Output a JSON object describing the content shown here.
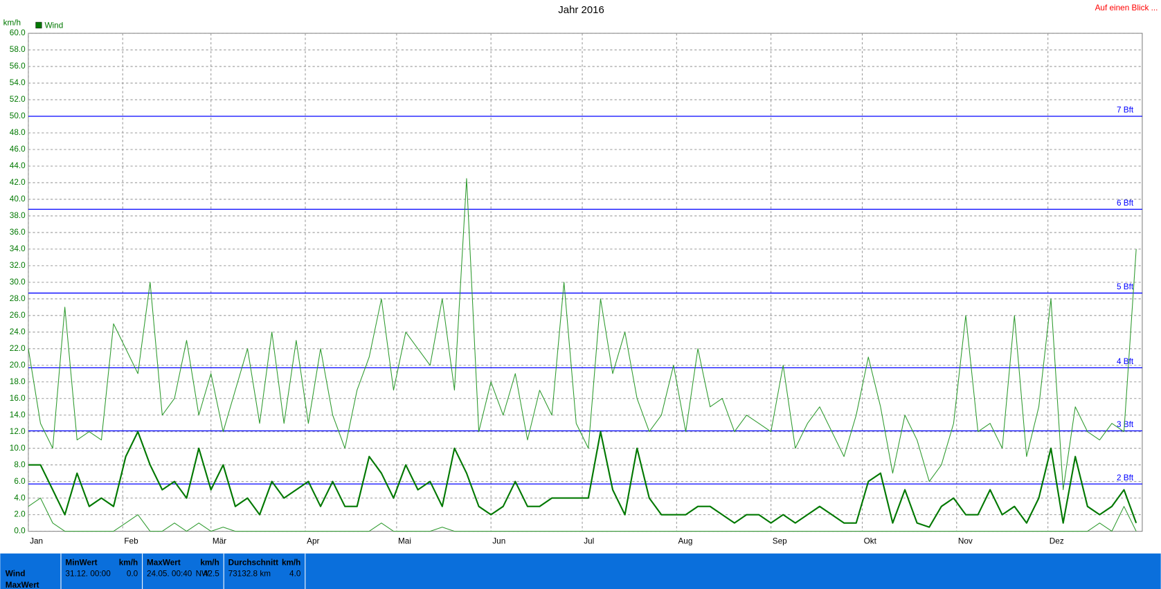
{
  "chart_data": {
    "type": "line",
    "title": "Jahr 2016",
    "y_label": "km/h",
    "link": "Auf einen Blick ...",
    "x": [
      0,
      4,
      8,
      12,
      16,
      20,
      24,
      28,
      32,
      36,
      40,
      44,
      48,
      52,
      56,
      60,
      64,
      68,
      72,
      76,
      80,
      84,
      88,
      92,
      96,
      100,
      104,
      108,
      112,
      116,
      120,
      124,
      128,
      132,
      136,
      140,
      144,
      148,
      152,
      156,
      160,
      164,
      168,
      172,
      176,
      180,
      184,
      188,
      192,
      196,
      200,
      204,
      208,
      212,
      216,
      220,
      224,
      228,
      232,
      236,
      240,
      244,
      248,
      252,
      256,
      260,
      264,
      268,
      272,
      276,
      280,
      284,
      288,
      292,
      296,
      300,
      304,
      308,
      312,
      316,
      320,
      324,
      328,
      332,
      336,
      340,
      344,
      348,
      352,
      356,
      360,
      364
    ],
    "xlim": [
      0,
      366
    ],
    "xticks": [
      {
        "value": 0,
        "label": "Jan"
      },
      {
        "value": 31,
        "label": "Feb"
      },
      {
        "value": 60,
        "label": "Mär"
      },
      {
        "value": 91,
        "label": "Apr"
      },
      {
        "value": 121,
        "label": "Mai"
      },
      {
        "value": 152,
        "label": "Jun"
      },
      {
        "value": 182,
        "label": "Jul"
      },
      {
        "value": 213,
        "label": "Aug"
      },
      {
        "value": 244,
        "label": "Sep"
      },
      {
        "value": 274,
        "label": "Okt"
      },
      {
        "value": 305,
        "label": "Nov"
      },
      {
        "value": 335,
        "label": "Dez"
      }
    ],
    "ylim": [
      0,
      60
    ],
    "yticks": [
      {
        "value": 0,
        "label": "0.0"
      },
      {
        "value": 2,
        "label": "2.0"
      },
      {
        "value": 4,
        "label": "4.0"
      },
      {
        "value": 6,
        "label": "6.0"
      },
      {
        "value": 8,
        "label": "8.0"
      },
      {
        "value": 10,
        "label": "10.0"
      },
      {
        "value": 12,
        "label": "12.0"
      },
      {
        "value": 14,
        "label": "14.0"
      },
      {
        "value": 16,
        "label": "16.0"
      },
      {
        "value": 18,
        "label": "18.0"
      },
      {
        "value": 20,
        "label": "20.0"
      },
      {
        "value": 22,
        "label": "22.0"
      },
      {
        "value": 24,
        "label": "24.0"
      },
      {
        "value": 26,
        "label": "26.0"
      },
      {
        "value": 28,
        "label": "28.0"
      },
      {
        "value": 30,
        "label": "30.0"
      },
      {
        "value": 32,
        "label": "32.0"
      },
      {
        "value": 34,
        "label": "34.0"
      },
      {
        "value": 36,
        "label": "36.0"
      },
      {
        "value": 38,
        "label": "38.0"
      },
      {
        "value": 40,
        "label": "40.0"
      },
      {
        "value": 42,
        "label": "42.0"
      },
      {
        "value": 44,
        "label": "44.0"
      },
      {
        "value": 46,
        "label": "46.0"
      },
      {
        "value": 48,
        "label": "48.0"
      },
      {
        "value": 50,
        "label": "50.0"
      },
      {
        "value": 52,
        "label": "52.0"
      },
      {
        "value": 54,
        "label": "54.0"
      },
      {
        "value": 56,
        "label": "56.0"
      },
      {
        "value": 58,
        "label": "58.0"
      },
      {
        "value": 60,
        "label": "60.0"
      }
    ],
    "grid": true,
    "reference_lines": [
      {
        "value": 5.7,
        "label": "2 Bft"
      },
      {
        "value": 12.1,
        "label": "3 Bft"
      },
      {
        "value": 19.7,
        "label": "4 Bft"
      },
      {
        "value": 28.7,
        "label": "5 Bft"
      },
      {
        "value": 38.8,
        "label": "6 Bft"
      },
      {
        "value": 50,
        "label": "7 Bft"
      }
    ],
    "reference_color": "#0000ff",
    "series": [
      {
        "name": "Wind",
        "color": "#007800",
        "width": 2,
        "values": [
          8,
          8,
          5,
          2,
          7,
          3,
          4,
          3,
          9,
          12,
          8,
          5,
          6,
          4,
          10,
          5,
          8,
          3,
          4,
          2,
          6,
          4,
          5,
          6,
          3,
          6,
          3,
          3,
          9,
          7,
          4,
          8,
          5,
          6,
          3,
          10,
          7,
          3,
          2,
          3,
          6,
          3,
          3,
          4,
          4,
          4,
          4,
          12,
          5,
          2,
          10,
          4,
          2,
          2,
          2,
          3,
          3,
          2,
          1,
          2,
          2,
          1,
          2,
          1,
          2,
          3,
          2,
          1,
          1,
          6,
          7,
          1,
          5,
          1,
          0.5,
          3,
          4,
          2,
          2,
          5,
          2,
          3,
          1,
          4,
          10,
          1,
          9,
          3,
          2,
          3,
          5,
          1
        ]
      },
      {
        "color": "#2e9a2e",
        "width": 1,
        "values": [
          22,
          13,
          10,
          27,
          11,
          12,
          11,
          25,
          22,
          19,
          30,
          14,
          16,
          23,
          14,
          19,
          12,
          17,
          22,
          13,
          24,
          13,
          23,
          13,
          22,
          14,
          10,
          17,
          21,
          28,
          17,
          24,
          22,
          20,
          28,
          17,
          42.5,
          12,
          18,
          14,
          19,
          11,
          17,
          14,
          30,
          13,
          10,
          28,
          19,
          24,
          16,
          12,
          14,
          20,
          12,
          22,
          15,
          16,
          12,
          14,
          13,
          12,
          20,
          10,
          13,
          15,
          12,
          9,
          14,
          21,
          15,
          7,
          14,
          11,
          6,
          8,
          13,
          26,
          12,
          13,
          10,
          26,
          9,
          15,
          28,
          5,
          15,
          12,
          11,
          13,
          12,
          34
        ]
      },
      {
        "color": "#2e9a2e",
        "width": 1,
        "values": [
          3,
          4,
          1,
          0,
          0,
          0,
          0,
          0,
          1,
          2,
          0,
          0,
          1,
          0,
          1,
          0,
          0.5,
          0,
          0,
          0,
          0,
          0,
          0,
          0,
          0,
          0,
          0,
          0,
          0,
          1,
          0,
          0,
          0,
          0,
          0.5,
          0,
          0,
          0,
          0,
          0,
          0,
          0,
          0,
          0,
          0,
          0,
          0,
          0,
          0,
          0,
          0,
          0,
          0,
          0,
          0,
          0,
          0,
          0,
          0,
          0,
          0,
          0,
          0,
          0,
          0,
          0,
          0,
          0,
          0,
          0,
          0,
          0,
          0,
          0,
          0,
          0,
          0,
          0,
          0,
          0,
          0,
          0,
          0,
          0,
          0,
          0,
          0,
          0,
          1,
          0,
          3,
          0
        ]
      }
    ]
  },
  "stats": {
    "row_labels": [
      "Wind",
      "MaxWert"
    ],
    "columns": [
      {
        "header": "MinWert",
        "unit": "km/h",
        "date": "31.12.  00:00",
        "value": "0.0"
      },
      {
        "header": "MaxWert",
        "unit": "km/h",
        "date": "24.05.  00:40",
        "dir": "NW",
        "value": "42.5"
      },
      {
        "header": "Durchschnitt",
        "unit": "km/h",
        "date": "73132.8 km",
        "value": "4.0"
      }
    ]
  }
}
